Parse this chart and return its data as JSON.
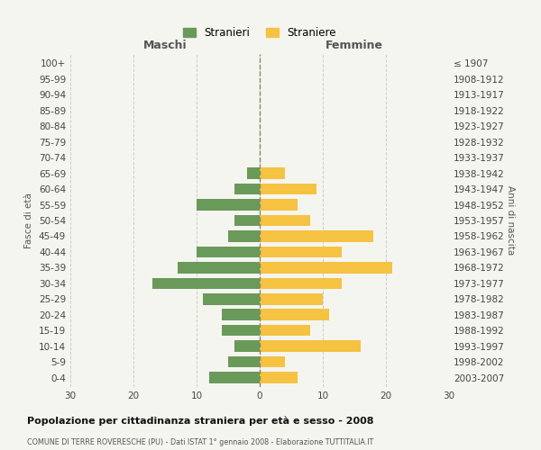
{
  "age_groups": [
    "0-4",
    "5-9",
    "10-14",
    "15-19",
    "20-24",
    "25-29",
    "30-34",
    "35-39",
    "40-44",
    "45-49",
    "50-54",
    "55-59",
    "60-64",
    "65-69",
    "70-74",
    "75-79",
    "80-84",
    "85-89",
    "90-94",
    "95-99",
    "100+"
  ],
  "birth_years": [
    "2003-2007",
    "1998-2002",
    "1993-1997",
    "1988-1992",
    "1983-1987",
    "1978-1982",
    "1973-1977",
    "1968-1972",
    "1963-1967",
    "1958-1962",
    "1953-1957",
    "1948-1952",
    "1943-1947",
    "1938-1942",
    "1933-1937",
    "1928-1932",
    "1923-1927",
    "1918-1922",
    "1913-1917",
    "1908-1912",
    "≤ 1907"
  ],
  "males": [
    8,
    5,
    4,
    6,
    6,
    9,
    17,
    13,
    10,
    5,
    4,
    10,
    4,
    2,
    0,
    0,
    0,
    0,
    0,
    0,
    0
  ],
  "females": [
    6,
    4,
    16,
    8,
    11,
    10,
    13,
    21,
    13,
    18,
    8,
    6,
    9,
    4,
    0,
    0,
    0,
    0,
    0,
    0,
    0
  ],
  "male_color": "#6a9a5a",
  "female_color": "#f5c242",
  "background_color": "#f5f5f0",
  "grid_color": "#cccccc",
  "bar_height": 0.72,
  "xlim": 30,
  "title": "Popolazione per cittadinanza straniera per età e sesso - 2008",
  "subtitle": "COMUNE DI TERRE ROVERESCHE (PU) - Dati ISTAT 1° gennaio 2008 - Elaborazione TUTTITALIA.IT",
  "xlabel_left": "Maschi",
  "xlabel_right": "Femmine",
  "ylabel": "Fasce di età",
  "ylabel_right": "Anni di nascita",
  "legend_male": "Stranieri",
  "legend_female": "Straniere"
}
